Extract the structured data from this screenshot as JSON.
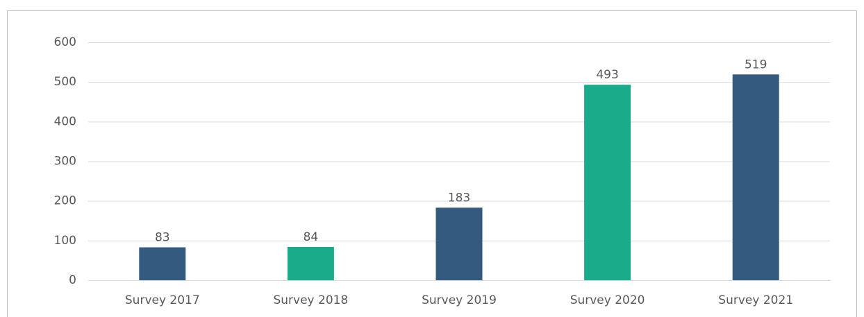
{
  "chart_data": {
    "type": "bar",
    "categories": [
      "Survey 2017",
      "Survey 2018",
      "Survey 2019",
      "Survey 2020",
      "Survey 2021"
    ],
    "values": [
      83,
      84,
      183,
      493,
      519
    ],
    "colors": [
      "#345a80",
      "#1aab8a",
      "#345a80",
      "#1aab8a",
      "#345a80"
    ],
    "ylim": [
      0,
      600
    ],
    "yticks": [
      0,
      100,
      200,
      300,
      400,
      500,
      600
    ],
    "grid": true
  }
}
